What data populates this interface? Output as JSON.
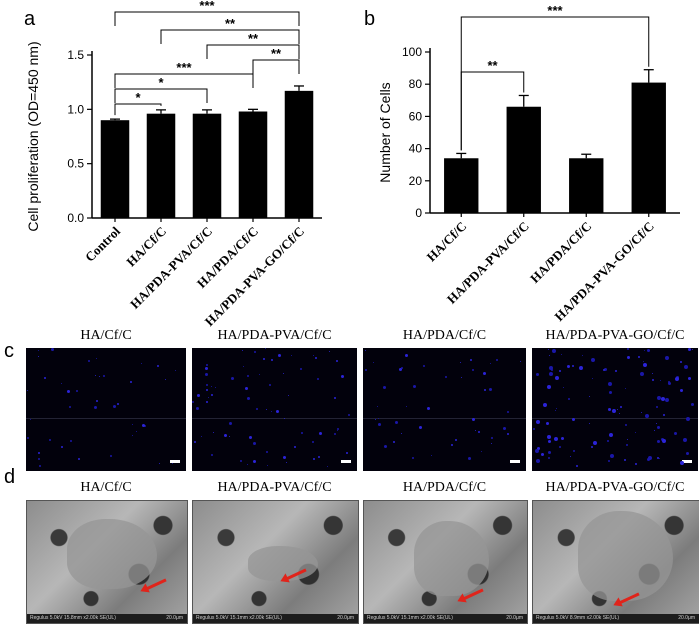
{
  "panels": {
    "a": "a",
    "b": "b",
    "c": "c",
    "d": "d"
  },
  "chart_data": [
    {
      "type": "bar",
      "ylabel": "Cell proliferation (OD=450 nm)",
      "ylim": [
        0,
        1.5
      ],
      "yticks": [
        "0.0",
        "0.5",
        "1.0",
        "1.5"
      ],
      "categories": [
        "Control",
        "HA/Cf/C",
        "HA/PDA-PVA/Cf/C",
        "HA/PDA/Cf/C",
        "HA/PDA-PVA-GO/Cf/C"
      ],
      "values": [
        0.9,
        0.96,
        0.96,
        0.98,
        1.17
      ],
      "errors": [
        0.01,
        0.035,
        0.035,
        0.02,
        0.045
      ],
      "significance": [
        {
          "from": 0,
          "to": 4,
          "label": "***"
        },
        {
          "from": 1,
          "to": 4,
          "label": "**"
        },
        {
          "from": 2,
          "to": 4,
          "label": "**"
        },
        {
          "from": 3,
          "to": 4,
          "label": "**"
        },
        {
          "from": 0,
          "to": 3,
          "label": "***"
        },
        {
          "from": 0,
          "to": 2,
          "label": "*"
        },
        {
          "from": 0,
          "to": 1,
          "label": "*"
        }
      ]
    },
    {
      "type": "bar",
      "ylabel": "Number of Cells",
      "ylim": [
        0,
        100
      ],
      "yticks": [
        "0",
        "20",
        "40",
        "60",
        "80",
        "100"
      ],
      "categories": [
        "HA/Cf/C",
        "HA/PDA-PVA/Cf/C",
        "HA/PDA/Cf/C",
        "HA/PDA-PVA-GO/Cf/C"
      ],
      "values": [
        34,
        66,
        34,
        81
      ],
      "errors": [
        3,
        7,
        2.5,
        8
      ],
      "significance": [
        {
          "from": 0,
          "to": 3,
          "label": "***"
        },
        {
          "from": 0,
          "to": 1,
          "label": "**"
        }
      ]
    }
  ],
  "fluorescence_titles": [
    "HA/Cf/C",
    "HA/PDA-PVA/Cf/C",
    "HA/PDA/Cf/C",
    "HA/PDA-PVA-GO/Cf/C"
  ],
  "sem_titles": [
    "HA/Cf/C",
    "HA/PDA-PVA/Cf/C",
    "HA/PDA/Cf/C",
    "HA/PDA-PVA-GO/Cf/C"
  ],
  "sem_info": [
    {
      "meta": "Regulus 5.0kV 15.8mm x2.00k SE(UL)",
      "scale": "20.0μm"
    },
    {
      "meta": "Regulus 5.0kV 15.1mm x2.00k SE(UL)",
      "scale": "20.0μm"
    },
    {
      "meta": "Regulus 5.0kV 15.1mm x2.00k SE(UL)",
      "scale": "20.0μm"
    },
    {
      "meta": "Regulus 5.0kV 8.9mm x2.00k SE(UL)",
      "scale": "20.0μm"
    }
  ]
}
